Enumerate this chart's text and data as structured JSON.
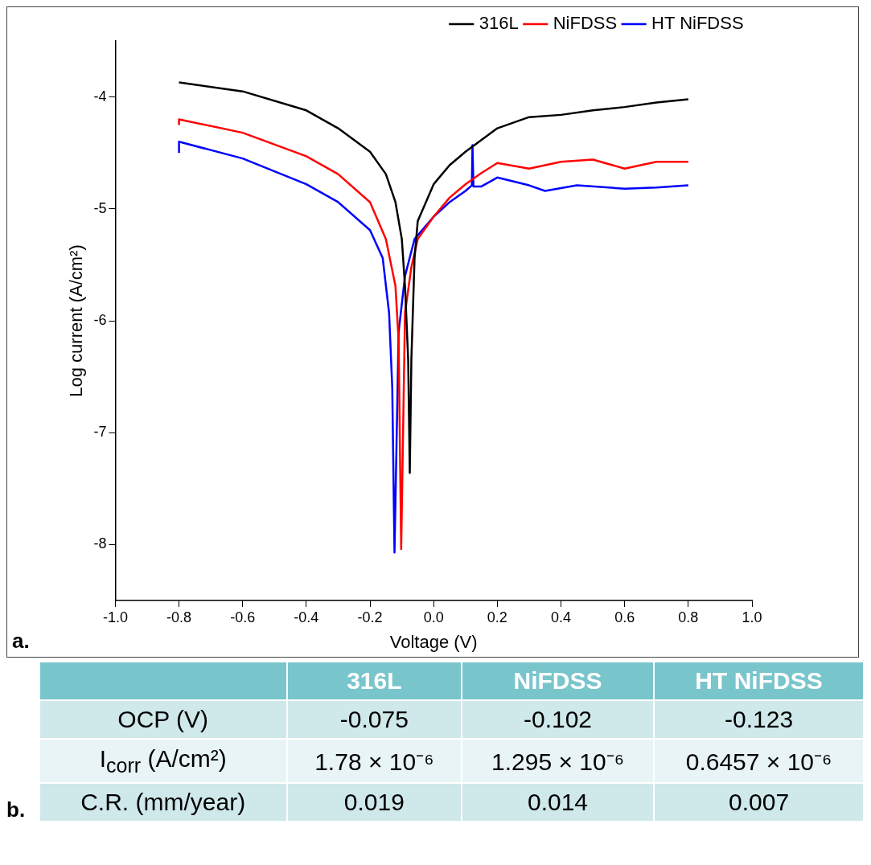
{
  "chart_data": [
    {
      "type": "line",
      "title": "a.",
      "xlabel": "Voltage (V)",
      "ylabel": "Log current (A/cm²)",
      "xlim": [
        -1,
        1
      ],
      "xticks": [
        {
          "value": -1,
          "label": "-1.0"
        },
        -0.8,
        -0.6,
        -0.4,
        -0.2,
        {
          "value": 0,
          "label": "0.0"
        },
        0.2,
        0.4,
        0.6,
        0.8,
        {
          "value": 1,
          "label": "1.0"
        }
      ],
      "ylim": [
        -8.5,
        -3.5
      ],
      "yticks": [
        -8,
        -7,
        -6,
        -5,
        -4
      ],
      "legend": "top right",
      "grid": false,
      "marker": "none",
      "line_style": "solid",
      "series": [
        {
          "name": "316L",
          "color": "#000000",
          "x": [
            -0.8,
            -0.6,
            -0.4,
            -0.3,
            -0.2,
            -0.15,
            -0.12,
            -0.1,
            -0.09,
            -0.08,
            -0.075,
            -0.07,
            -0.06,
            -0.05,
            0.0,
            0.05,
            0.1,
            0.2,
            0.3,
            0.4,
            0.5,
            0.6,
            0.7,
            0.8
          ],
          "values": [
            -3.87,
            -3.95,
            -4.12,
            -4.28,
            -4.49,
            -4.69,
            -4.94,
            -5.27,
            -5.69,
            -6.35,
            -7.36,
            -6.35,
            -5.44,
            -5.11,
            -4.78,
            -4.61,
            -4.49,
            -4.28,
            -4.18,
            -4.16,
            -4.12,
            -4.09,
            -4.05,
            -4.02
          ]
        },
        {
          "name": "NiFDSS",
          "color": "#ff0000",
          "x": [
            -0.8,
            -0.8,
            -0.6,
            -0.4,
            -0.3,
            -0.2,
            -0.15,
            -0.12,
            -0.11,
            -0.102,
            -0.09,
            -0.07,
            -0.05,
            0.0,
            0.05,
            0.1,
            0.15,
            0.2,
            0.3,
            0.4,
            0.5,
            0.6,
            0.7,
            0.8
          ],
          "values": [
            -4.25,
            -4.2,
            -4.32,
            -4.53,
            -4.69,
            -4.94,
            -5.27,
            -5.69,
            -6.18,
            -8.04,
            -5.93,
            -5.52,
            -5.27,
            -5.07,
            -4.9,
            -4.78,
            -4.68,
            -4.59,
            -4.64,
            -4.58,
            -4.56,
            -4.64,
            -4.58,
            -4.58
          ]
        },
        {
          "name": "HT NiFDSS",
          "color": "#0000ff",
          "x": [
            -0.8,
            -0.8,
            -0.6,
            -0.4,
            -0.3,
            -0.2,
            -0.16,
            -0.14,
            -0.13,
            -0.123,
            -0.11,
            -0.09,
            -0.06,
            0.0,
            0.05,
            0.1,
            0.12,
            0.122,
            0.125,
            0.15,
            0.2,
            0.3,
            0.35,
            0.45,
            0.6,
            0.7,
            0.8
          ],
          "values": [
            -4.5,
            -4.4,
            -4.55,
            -4.78,
            -4.94,
            -5.19,
            -5.44,
            -5.93,
            -6.6,
            -8.07,
            -6.1,
            -5.6,
            -5.27,
            -5.07,
            -4.94,
            -4.84,
            -4.79,
            -4.43,
            -4.8,
            -4.8,
            -4.72,
            -4.79,
            -4.84,
            -4.79,
            -4.82,
            -4.81,
            -4.79
          ]
        }
      ]
    },
    {
      "type": "other",
      "title": "b.",
      "categories": [
        "316L",
        "NiFDSS",
        "HT NiFDSS"
      ],
      "series": [
        {
          "name": "OCP (V)",
          "values": [
            -0.075,
            -0.102,
            -0.123
          ],
          "value_labels": [
            "-0.075",
            "-0.102",
            "-0.123"
          ]
        },
        {
          "name": "I$_{corr}$ (A/cm²)",
          "values": [
            1.78e-06,
            1.295e-06,
            6.457e-07
          ],
          "value_labels": [
            "1.78 × 10⁻⁶",
            "1.295 × 10⁻⁶",
            "0.6457 × 10⁻⁶"
          ]
        },
        {
          "name": "C.R. (mm/year)",
          "values": [
            0.019,
            0.014,
            0.007
          ],
          "value_labels": [
            "0.019",
            "0.014",
            "0.007"
          ]
        }
      ]
    }
  ]
}
